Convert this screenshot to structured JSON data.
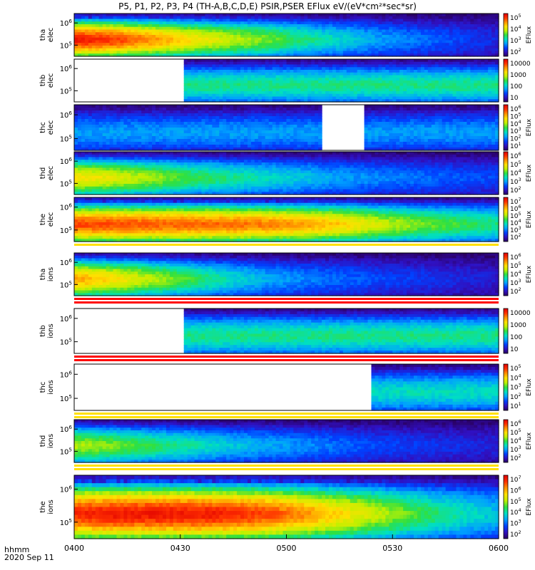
{
  "title": "P5, P1, P2, P3, P4 (TH-A,B,C,D,E) PSIR,PSER EFlux eV/(eV*cm²*sec*sr)",
  "footer": {
    "time_unit": "hhmm",
    "date": "2020 Sep 11"
  },
  "chart_data": {
    "type": "heatmap",
    "x_axis": {
      "ticks": [
        "0400",
        "0430",
        "0500",
        "0530",
        "0600"
      ],
      "range": [
        "04:00",
        "06:00"
      ]
    },
    "colorbar_label": "EFlux",
    "colormap": [
      "#2a0060",
      "#3010c0",
      "#0040ff",
      "#00a0ff",
      "#00e0c0",
      "#30e040",
      "#c0f000",
      "#ffe000",
      "#ff9000",
      "#ff3000",
      "#e00000"
    ],
    "panels": [
      {
        "id": "tha-elec",
        "ylabel": [
          "tha",
          "elec"
        ],
        "y_ticks": [
          "10^6",
          "10^5"
        ],
        "colorbar_ticks": [
          "10^5",
          "10^4",
          "10^3",
          "10^2"
        ],
        "colorbar_label": "EFlux",
        "intensity_profile": [
          0.95,
          0.9,
          0.8,
          0.7,
          0.62,
          0.55,
          0.45,
          0.38,
          0.3,
          0.25,
          0.2,
          0.15
        ],
        "gaps": [],
        "bars_below": []
      },
      {
        "id": "thb-elec",
        "ylabel": [
          "thb",
          "elec"
        ],
        "y_ticks": [
          "10^6",
          "10^5"
        ],
        "colorbar_ticks": [
          "10000",
          "1000",
          "100",
          "10"
        ],
        "colorbar_label": "",
        "intensity_profile": [
          0.45,
          0.45,
          0.45,
          0.45,
          0.45,
          0.45,
          0.45,
          0.45,
          0.45,
          0.45,
          0.45,
          0.45
        ],
        "gaps": [
          [
            "04:00",
            "04:31"
          ]
        ],
        "bars_below": []
      },
      {
        "id": "thc-elec",
        "ylabel": [
          "thc",
          "elec"
        ],
        "y_ticks": [
          "10^6",
          "10^5"
        ],
        "colorbar_ticks": [
          "10^6",
          "10^5",
          "10^4",
          "10^3",
          "10^2",
          "10^1"
        ],
        "colorbar_label": "EFlux",
        "intensity_profile": [
          0.3,
          0.3,
          0.3,
          0.3,
          0.3,
          0.3,
          0.3,
          0.3,
          0.3,
          0.3,
          0.3,
          0.3
        ],
        "gaps": [
          [
            "05:10",
            "05:22"
          ]
        ],
        "bars_below": []
      },
      {
        "id": "thd-elec",
        "ylabel": [
          "thd",
          "elec"
        ],
        "y_ticks": [
          "10^6",
          "10^5"
        ],
        "colorbar_ticks": [
          "10^6",
          "10^5",
          "10^4",
          "10^3",
          "10^2"
        ],
        "colorbar_label": "EFlux",
        "intensity_profile": [
          0.7,
          0.65,
          0.58,
          0.5,
          0.45,
          0.4,
          0.35,
          0.3,
          0.27,
          0.25,
          0.22,
          0.2
        ],
        "gaps": [],
        "bars_below": []
      },
      {
        "id": "the-elec",
        "ylabel": [
          "the",
          "elec"
        ],
        "y_ticks": [
          "10^6",
          "10^5"
        ],
        "colorbar_ticks": [
          "10^7",
          "10^6",
          "10^5",
          "10^4",
          "10^3",
          "10^2"
        ],
        "colorbar_label": "EFlux",
        "intensity_profile": [
          0.88,
          0.88,
          0.86,
          0.85,
          0.84,
          0.82,
          0.78,
          0.72,
          0.62,
          0.55,
          0.5,
          0.45
        ],
        "gaps": [],
        "bars_below": [
          "#ffe000"
        ]
      },
      {
        "id": "tha-ions",
        "ylabel": [
          "tha",
          "ions"
        ],
        "y_ticks": [
          "10^6",
          "10^5"
        ],
        "colorbar_ticks": [
          "10^6",
          "10^5",
          "10^4",
          "10^3",
          "10^2"
        ],
        "colorbar_label": "EFlux",
        "intensity_profile": [
          0.78,
          0.7,
          0.6,
          0.5,
          0.4,
          0.32,
          0.27,
          0.24,
          0.2,
          0.18,
          0.15,
          0.12
        ],
        "gaps": [],
        "bars_below": [
          "#ff0000",
          "#ff0000"
        ]
      },
      {
        "id": "thb-ions",
        "ylabel": [
          "thb",
          "ions"
        ],
        "y_ticks": [
          "10^6",
          "10^5"
        ],
        "colorbar_ticks": [
          "10000",
          "1000",
          "100",
          "10"
        ],
        "colorbar_label": "",
        "intensity_profile": [
          0.45,
          0.45,
          0.45,
          0.45,
          0.45,
          0.45,
          0.45,
          0.45,
          0.45,
          0.45,
          0.45,
          0.45
        ],
        "gaps": [
          [
            "04:00",
            "04:31"
          ]
        ],
        "bars_below": [
          "#ff0000",
          "#ff0000"
        ]
      },
      {
        "id": "thc-ions",
        "ylabel": [
          "thc",
          "ions"
        ],
        "y_ticks": [
          "10^6",
          "10^5"
        ],
        "colorbar_ticks": [
          "10^5",
          "10^4",
          "10^3",
          "10^2",
          "10^1"
        ],
        "colorbar_label": "EFlux",
        "intensity_profile": [
          0.4,
          0.4,
          0.4,
          0.4,
          0.4,
          0.4,
          0.4,
          0.4,
          0.4,
          0.4,
          0.4,
          0.4
        ],
        "gaps": [
          [
            "04:00",
            "05:24"
          ]
        ],
        "bars_below": [
          "#ffe000",
          "#ffe000"
        ]
      },
      {
        "id": "thd-ions",
        "ylabel": [
          "thd",
          "ions"
        ],
        "y_ticks": [
          "10^6",
          "10^5"
        ],
        "colorbar_ticks": [
          "10^6",
          "10^5",
          "10^4",
          "10^3",
          "10^2"
        ],
        "colorbar_label": "EFlux",
        "intensity_profile": [
          0.6,
          0.55,
          0.48,
          0.42,
          0.36,
          0.32,
          0.28,
          0.24,
          0.2,
          0.18,
          0.16,
          0.14
        ],
        "gaps": [],
        "bars_below": [
          "#ffe000",
          "#ffe000"
        ]
      },
      {
        "id": "the-ions",
        "ylabel": [
          "the",
          "ions"
        ],
        "y_ticks": [
          "10^6",
          "10^5"
        ],
        "colorbar_ticks": [
          "10^7",
          "10^6",
          "10^5",
          "10^4",
          "10^3",
          "10^2"
        ],
        "colorbar_label": "EFlux",
        "intensity_profile": [
          0.92,
          0.95,
          0.95,
          0.95,
          0.93,
          0.88,
          0.8,
          0.7,
          0.6,
          0.5,
          0.42,
          0.35
        ],
        "gaps": [],
        "bars_below": []
      }
    ]
  }
}
